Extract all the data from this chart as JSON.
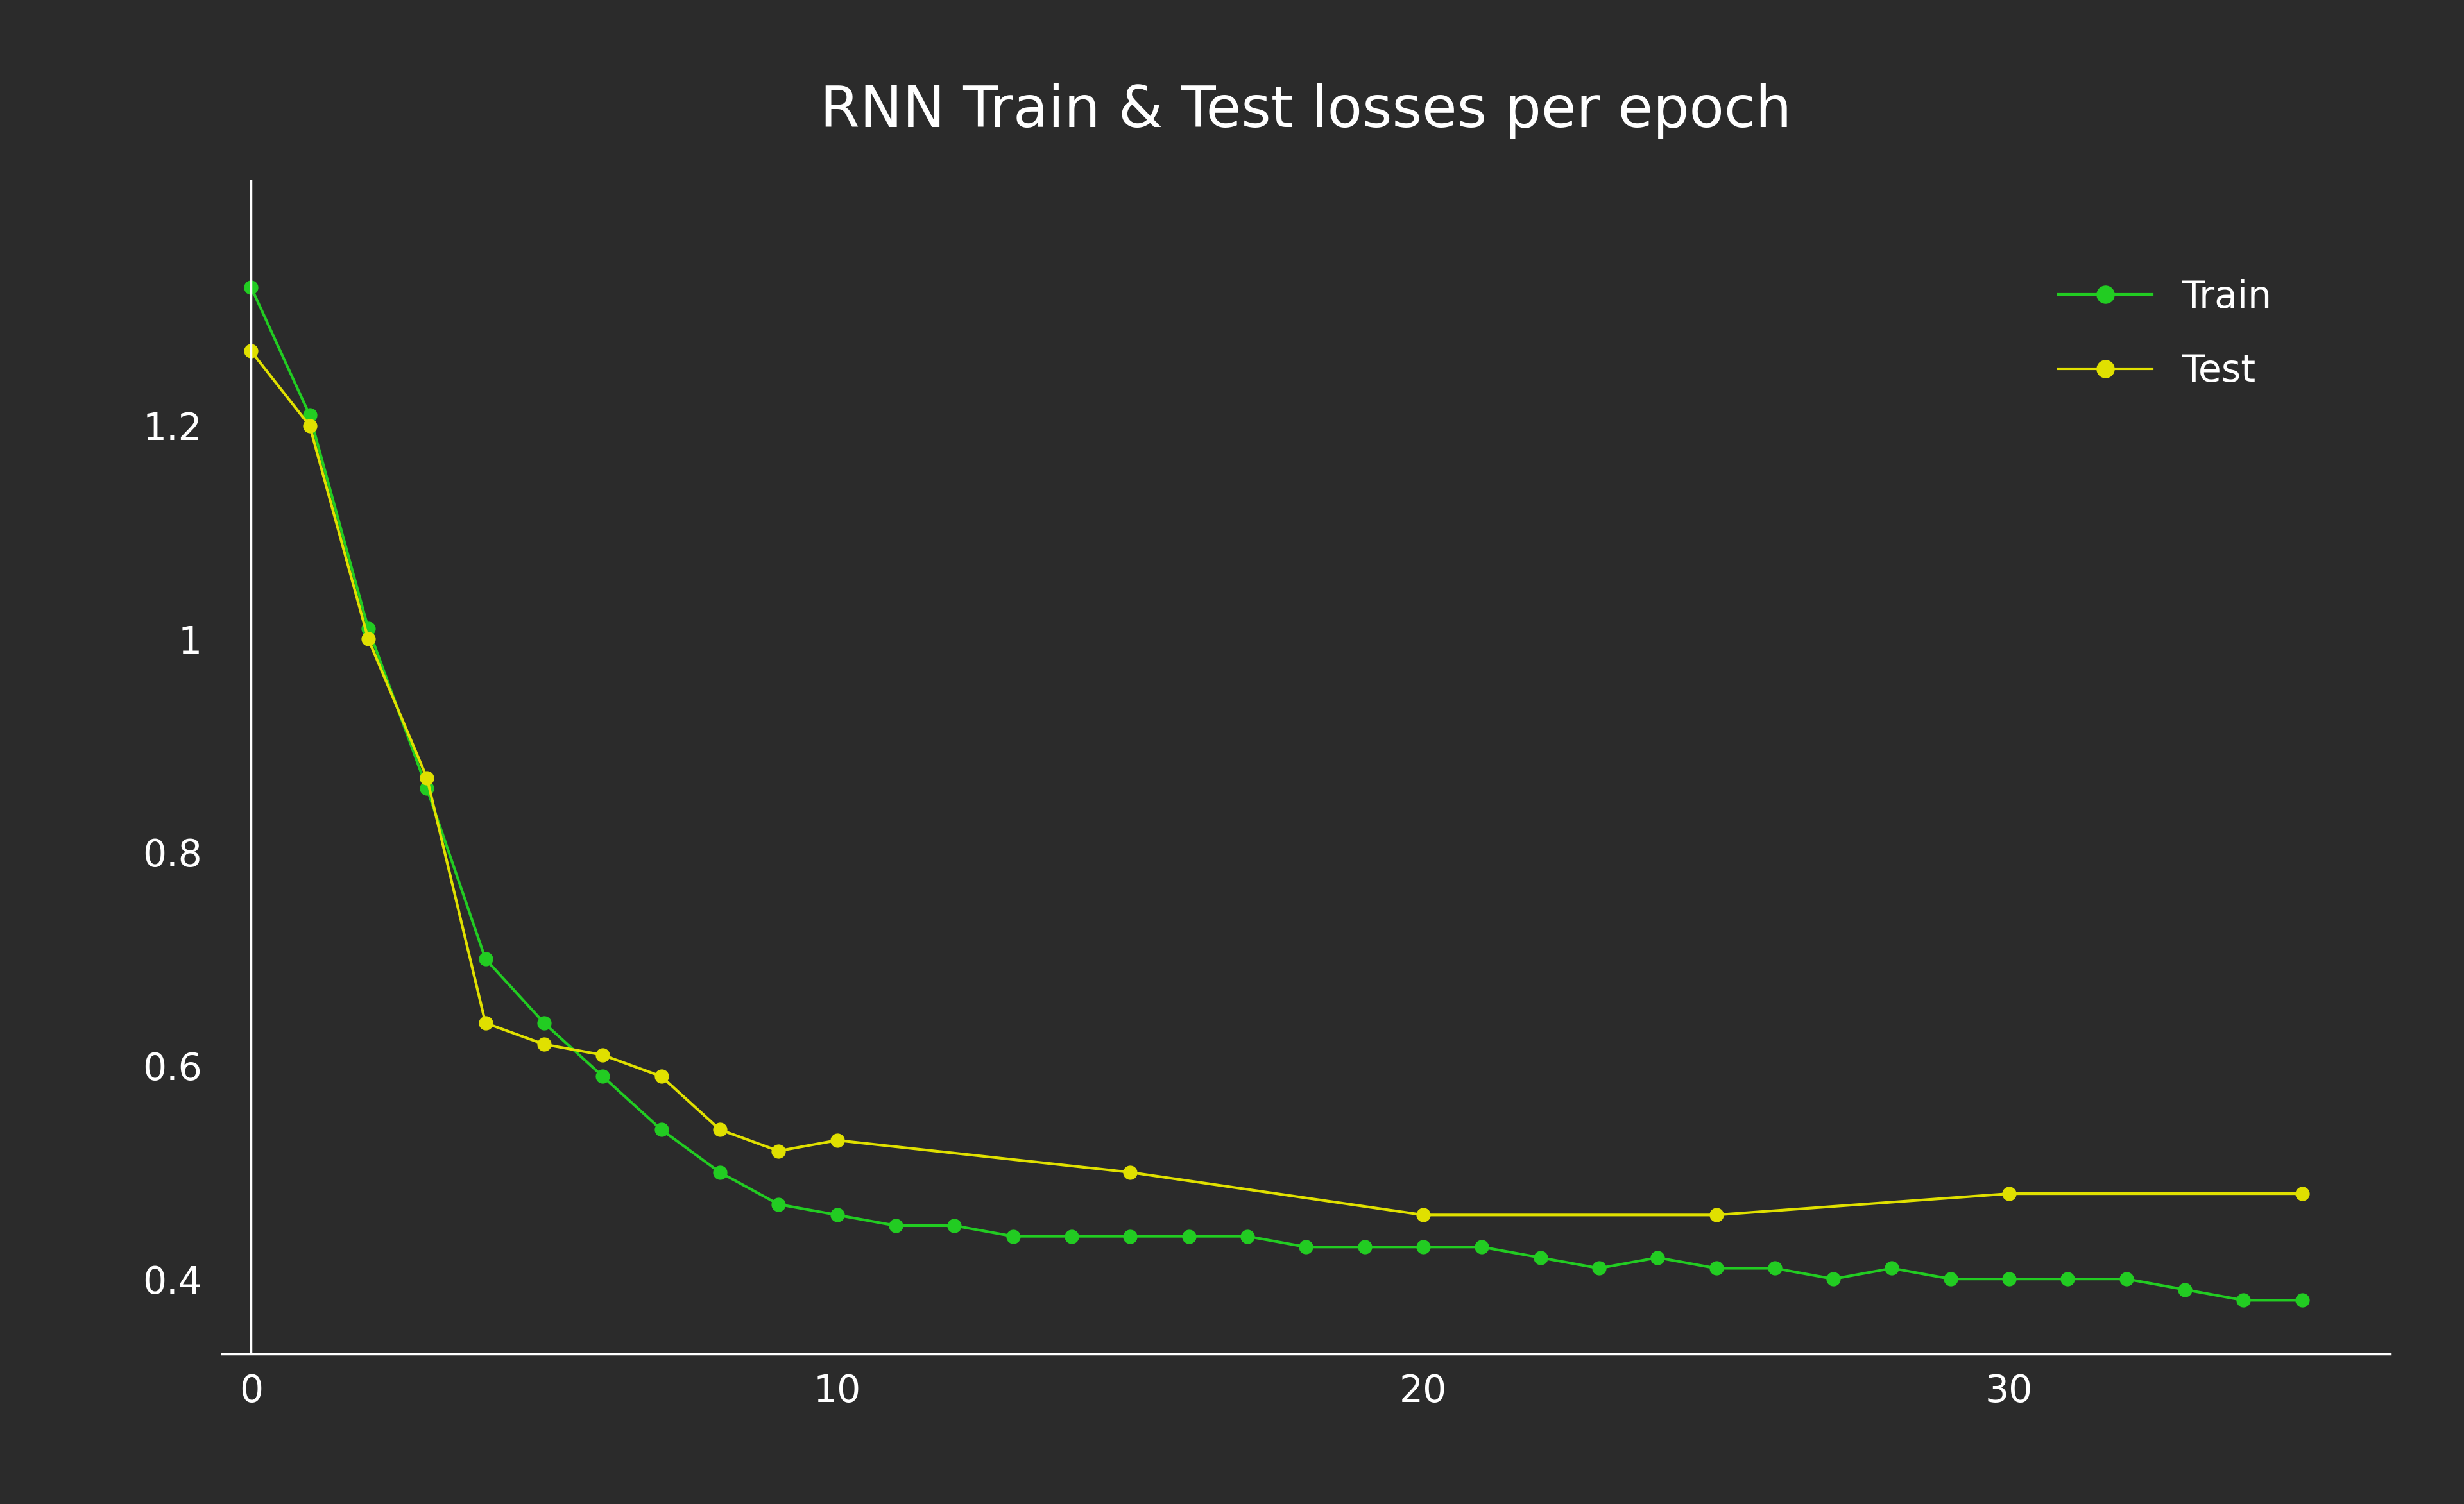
{
  "title": "RNN Train & Test losses per epoch",
  "background_color": "#2b2b2b",
  "text_color": "#ffffff",
  "train_color": "#22cc22",
  "test_color": "#e0e000",
  "train_epochs": [
    0,
    1,
    2,
    3,
    4,
    5,
    6,
    7,
    8,
    9,
    10,
    11,
    12,
    13,
    14,
    15,
    16,
    17,
    18,
    19,
    20,
    21,
    22,
    23,
    24,
    25,
    26,
    27,
    28,
    29,
    30,
    31,
    32,
    33,
    34,
    35
  ],
  "train_losses": [
    1.33,
    1.21,
    1.01,
    0.86,
    0.7,
    0.64,
    0.59,
    0.54,
    0.5,
    0.47,
    0.46,
    0.45,
    0.45,
    0.44,
    0.44,
    0.44,
    0.44,
    0.44,
    0.43,
    0.43,
    0.43,
    0.43,
    0.42,
    0.41,
    0.42,
    0.41,
    0.41,
    0.4,
    0.41,
    0.4,
    0.4,
    0.4,
    0.4,
    0.39,
    0.38,
    0.38
  ],
  "test_epochs": [
    0,
    1,
    2,
    3,
    4,
    5,
    6,
    7,
    8,
    9,
    10,
    15,
    20,
    25,
    30,
    35
  ],
  "test_losses": [
    1.27,
    1.2,
    1.0,
    0.87,
    0.64,
    0.62,
    0.61,
    0.59,
    0.54,
    0.52,
    0.53,
    0.5,
    0.46,
    0.46,
    0.48,
    0.48
  ],
  "xlim": [
    -0.5,
    36.5
  ],
  "ylim": [
    0.33,
    1.43
  ],
  "yticks": [
    0.4,
    0.6,
    0.8,
    1.0,
    1.2
  ],
  "xticks": [
    0,
    10,
    20,
    30
  ],
  "tick_fontsize": 42,
  "title_fontsize": 64,
  "legend_fontsize": 42,
  "linewidth": 3.0,
  "markersize": 15,
  "legend_loc": "upper right"
}
